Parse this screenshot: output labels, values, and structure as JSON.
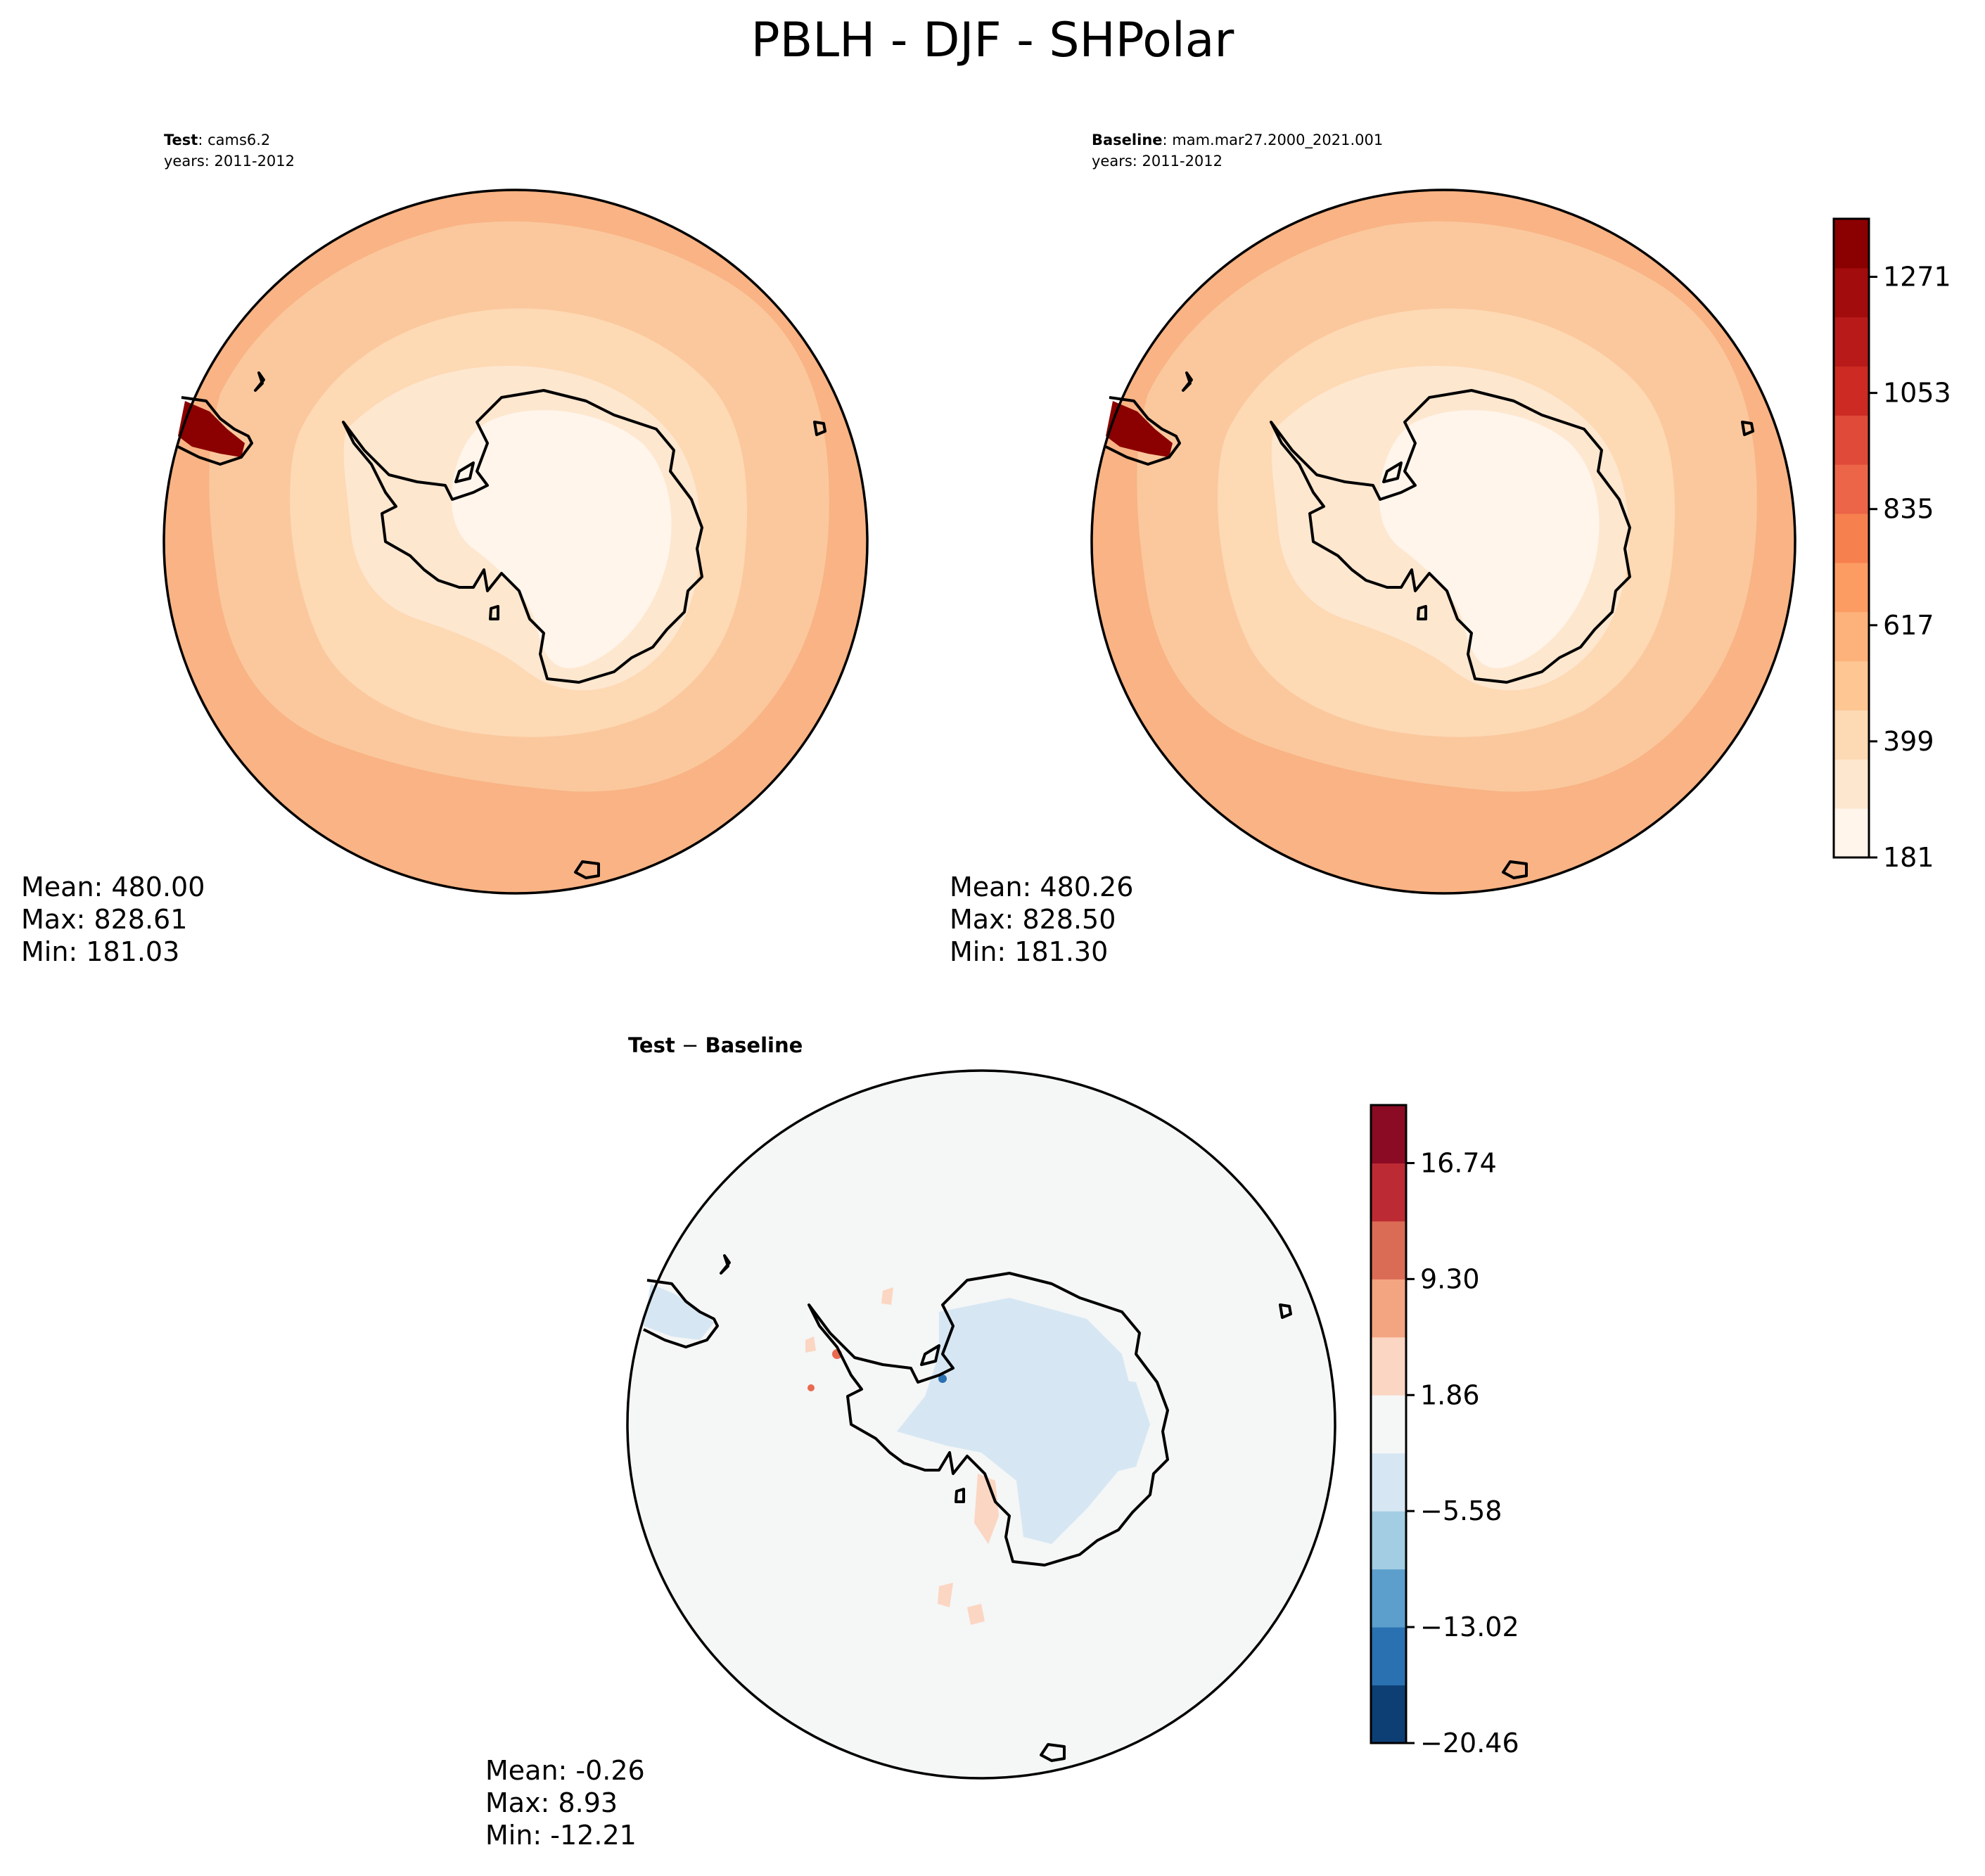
{
  "title": "PBLH - DJF - SHPolar",
  "panels": {
    "test": {
      "label_bold": "Test",
      "label_rest": ": cams6.2",
      "years": "years: 2011-2012",
      "stats": {
        "mean": "Mean: 480.00",
        "max": "Max: 828.61",
        "min": "Min: 181.03"
      }
    },
    "baseline": {
      "label_bold": "Baseline",
      "label_rest": ": mam.mar27.2000_2021.001",
      "years": "years: 2011-2012",
      "stats": {
        "mean": "Mean: 480.26",
        "max": "Max: 828.50",
        "min": "Min: 181.30"
      }
    },
    "diff": {
      "label_bold": "Test",
      "label_minus": " − ",
      "label_bold2": "Baseline",
      "stats": {
        "mean": "Mean: -0.26",
        "max": "Max:  8.93",
        "min": "Min: -12.21"
      }
    }
  },
  "colors": {
    "outer_ocean": "#f9b384",
    "mid_ocean": "#fbc89d",
    "inner_ocean": "#fdd9b4",
    "shelf": "#fee7cf",
    "plateau": "#fff5eb",
    "max_red": "#8b0000",
    "diff_background": "#f5f6f6",
    "diff_blue": "#d6e7f3",
    "diff_red": "#fbd6c2"
  },
  "chart_data": [
    {
      "type": "heatmap",
      "name": "Test",
      "projection": "south-polar-stereographic",
      "mean": 480.0,
      "max": 828.61,
      "min": 181.03
    },
    {
      "type": "heatmap",
      "name": "Baseline",
      "projection": "south-polar-stereographic",
      "mean": 480.26,
      "max": 828.5,
      "min": 181.3
    },
    {
      "type": "heatmap",
      "name": "Test - Baseline",
      "projection": "south-polar-stereographic",
      "mean": -0.26,
      "max": 8.93,
      "min": -12.21
    }
  ],
  "colorbars": {
    "pblh": {
      "ticks": [
        "181",
        "399",
        "617",
        "835",
        "1053",
        "1271"
      ],
      "tick_values": [
        181,
        399,
        617,
        835,
        1053,
        1271
      ],
      "range": [
        181,
        1380
      ],
      "colors": [
        "#fff5eb",
        "#fee7cf",
        "#fdd9b4",
        "#fdc692",
        "#fdb27b",
        "#fc9c63",
        "#f7804f",
        "#ec6548",
        "#e04a39",
        "#cc2a22",
        "#b81a1a",
        "#a30c0c",
        "#8b0000"
      ]
    },
    "diff": {
      "ticks": [
        "−20.46",
        "−13.02",
        "−5.58",
        "1.86",
        "9.30",
        "16.74"
      ],
      "tick_values": [
        -20.46,
        -13.02,
        -5.58,
        1.86,
        9.3,
        16.74
      ],
      "range": [
        -20.46,
        20.46
      ],
      "colors": [
        "#0d3f74",
        "#2a71b2",
        "#5c9fcd",
        "#a3cde3",
        "#d6e7f3",
        "#f5f6f6",
        "#fbd6c2",
        "#f3a481",
        "#da6b55",
        "#bc2a34",
        "#8b0a24"
      ]
    }
  }
}
